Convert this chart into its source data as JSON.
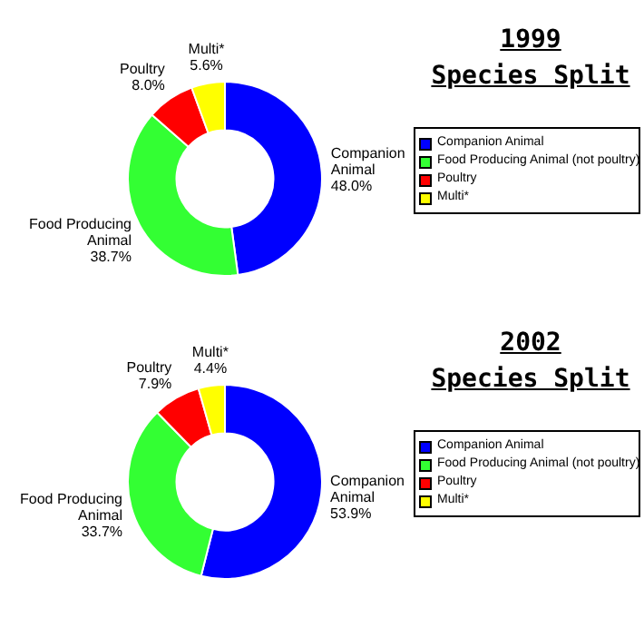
{
  "chart_data": [
    {
      "type": "donut",
      "title": "1999",
      "subtitle": "Species Split",
      "categories": [
        "Companion Animal",
        "Food Producing Animal (not poultry)",
        "Poultry",
        "Multi*"
      ],
      "values": [
        48.0,
        38.7,
        8.0,
        5.6
      ],
      "colors": [
        "#0000ff",
        "#33ff33",
        "#ff0000",
        "#ffff00"
      ],
      "value_labels": [
        "Companion\nAnimal\n48.0%",
        "Food Producing\nAnimal\n38.7%",
        "Poultry\n8.0%",
        "Multi*\n5.6%"
      ],
      "legend": "right"
    },
    {
      "type": "donut",
      "title": "2002",
      "subtitle": "Species Split",
      "categories": [
        "Companion Animal",
        "Food Producing Animal (not poultry)",
        "Poultry",
        "Multi*"
      ],
      "values": [
        53.9,
        33.7,
        7.9,
        4.4
      ],
      "colors": [
        "#0000ff",
        "#33ff33",
        "#ff0000",
        "#ffff00"
      ],
      "value_labels": [
        "Companion\nAnimal\n53.9%",
        "Food Producing\nAnimal\n33.7%",
        "Poultry\n7.9%",
        "Multi*\n4.4%"
      ],
      "legend": "right"
    }
  ]
}
